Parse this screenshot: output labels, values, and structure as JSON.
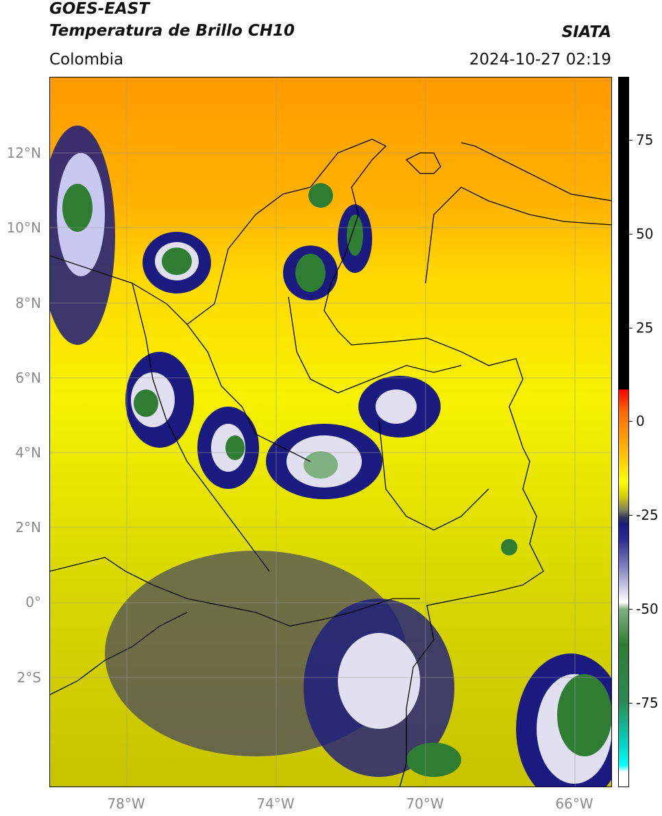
{
  "header": {
    "satellite": "GOES-EAST",
    "product": "Temperatura de Brillo CH10",
    "agency": "SIATA",
    "region": "Colombia",
    "datetime": "2024-10-27 02:19"
  },
  "map": {
    "lat_labels": [
      "12°N",
      "10°N",
      "8°N",
      "6°N",
      "4°N",
      "2°N",
      "0°",
      "2°S"
    ],
    "lon_labels": [
      "78°W",
      "74°W",
      "70°W",
      "66°W"
    ]
  },
  "colorbar": {
    "ticks": [
      "75",
      "50",
      "25",
      "0",
      "-25",
      "-50",
      "-75"
    ]
  },
  "colors": {
    "warm": "#ff9a00",
    "mid": "#f6f200",
    "cold_blue": "#1a1a80",
    "cold_green": "#2e7d32"
  }
}
